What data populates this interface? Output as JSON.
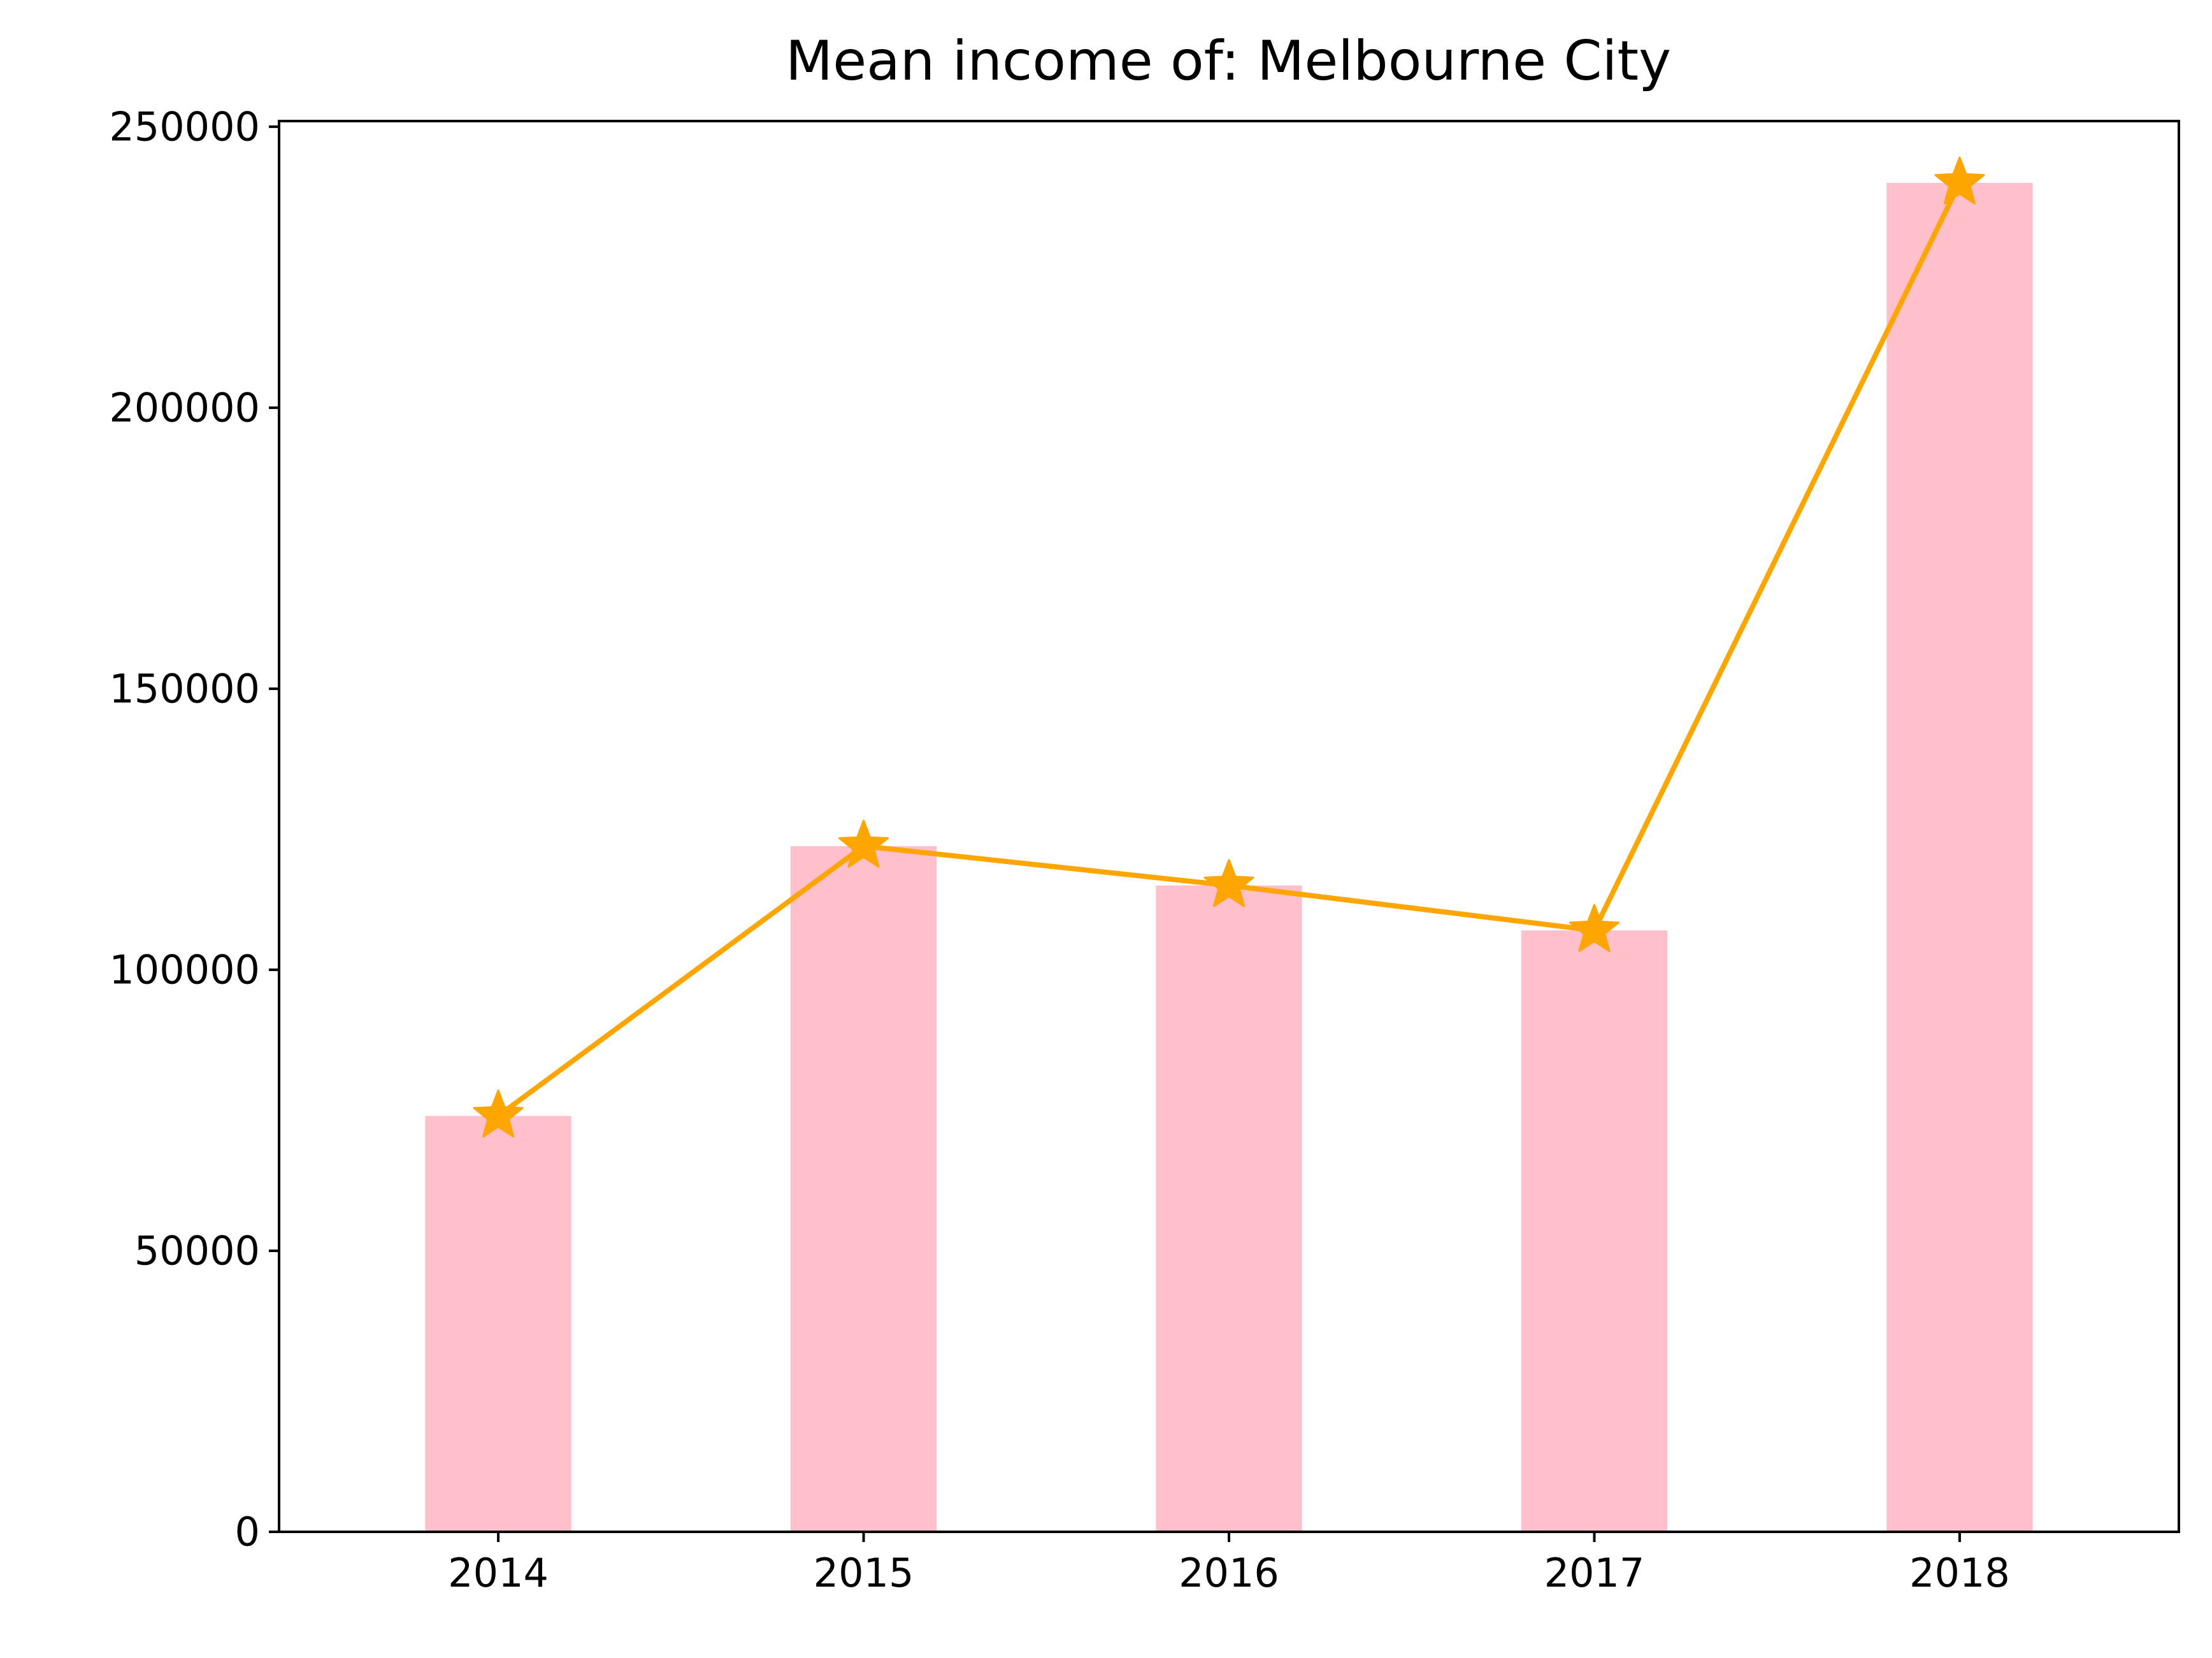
{
  "chart_data": {
    "type": "bar+line",
    "title": "Mean income of: Melbourne City",
    "xlabel": "",
    "ylabel": "",
    "categories": [
      "2014",
      "2015",
      "2016",
      "2017",
      "2018"
    ],
    "values": [
      74000,
      122000,
      115000,
      107000,
      240000
    ],
    "ylim": [
      0,
      251000
    ],
    "yticks": [
      0,
      50000,
      100000,
      150000,
      200000,
      250000
    ],
    "ytick_labels": [
      "0",
      "50000",
      "100000",
      "150000",
      "200000",
      "250000"
    ],
    "grid": false,
    "bar_color": "#FFC0CB",
    "line_color": "#FFA500",
    "marker": "star"
  }
}
